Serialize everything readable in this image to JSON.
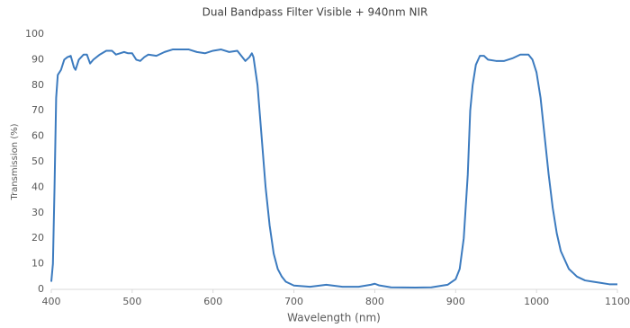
{
  "chart_data": {
    "type": "line",
    "title": "Dual Bandpass Filter Visible + 940nm NIR",
    "x_label": "Wavelength (nm)",
    "y_label": "Transmission (%)",
    "xlim": [
      400,
      1100
    ],
    "xticks": [
      400,
      500,
      600,
      700,
      800,
      900,
      1000,
      1100
    ],
    "ylim": [
      0,
      100
    ],
    "yticks": [
      0,
      10,
      20,
      30,
      40,
      50,
      60,
      70,
      80,
      90,
      100
    ],
    "grid": false,
    "series": [
      {
        "name": "Transmission",
        "color": "#3c7bbf",
        "x": [
          400,
          402,
          404,
          406,
          408,
          412,
          416,
          420,
          424,
          428,
          430,
          434,
          440,
          444,
          448,
          452,
          460,
          468,
          475,
          480,
          485,
          490,
          495,
          500,
          505,
          510,
          515,
          520,
          530,
          540,
          550,
          560,
          570,
          580,
          590,
          600,
          610,
          620,
          630,
          640,
          645,
          648,
          650,
          655,
          660,
          665,
          670,
          675,
          680,
          685,
          690,
          700,
          720,
          740,
          760,
          780,
          795,
          800,
          805,
          820,
          850,
          870,
          890,
          900,
          905,
          910,
          915,
          918,
          921,
          925,
          930,
          935,
          940,
          950,
          960,
          970,
          980,
          990,
          995,
          1000,
          1005,
          1010,
          1015,
          1020,
          1025,
          1030,
          1040,
          1050,
          1060,
          1070,
          1080,
          1090,
          1100
        ],
        "values": [
          3,
          10,
          40,
          75,
          84,
          86,
          90,
          91,
          91.5,
          87,
          86,
          90,
          92,
          92,
          88.5,
          90,
          92,
          93.5,
          93.5,
          92,
          92.5,
          93,
          92.5,
          92.5,
          90,
          89.5,
          91,
          92,
          91.5,
          93,
          94,
          94,
          94,
          93,
          92.5,
          93.5,
          94,
          93,
          93.5,
          89.5,
          91,
          92.5,
          91,
          80,
          60,
          40,
          25,
          14,
          8,
          5,
          3,
          1.5,
          1,
          1.8,
          1,
          1,
          1.8,
          2.2,
          1.6,
          0.8,
          0.7,
          0.8,
          1.8,
          4,
          8,
          20,
          45,
          70,
          80,
          88,
          91.5,
          91.5,
          90,
          89.5,
          89.5,
          90.5,
          92,
          92,
          90,
          85,
          75,
          60,
          45,
          32,
          22,
          15,
          8,
          5,
          3.5,
          3,
          2.5,
          2,
          2
        ]
      }
    ]
  }
}
